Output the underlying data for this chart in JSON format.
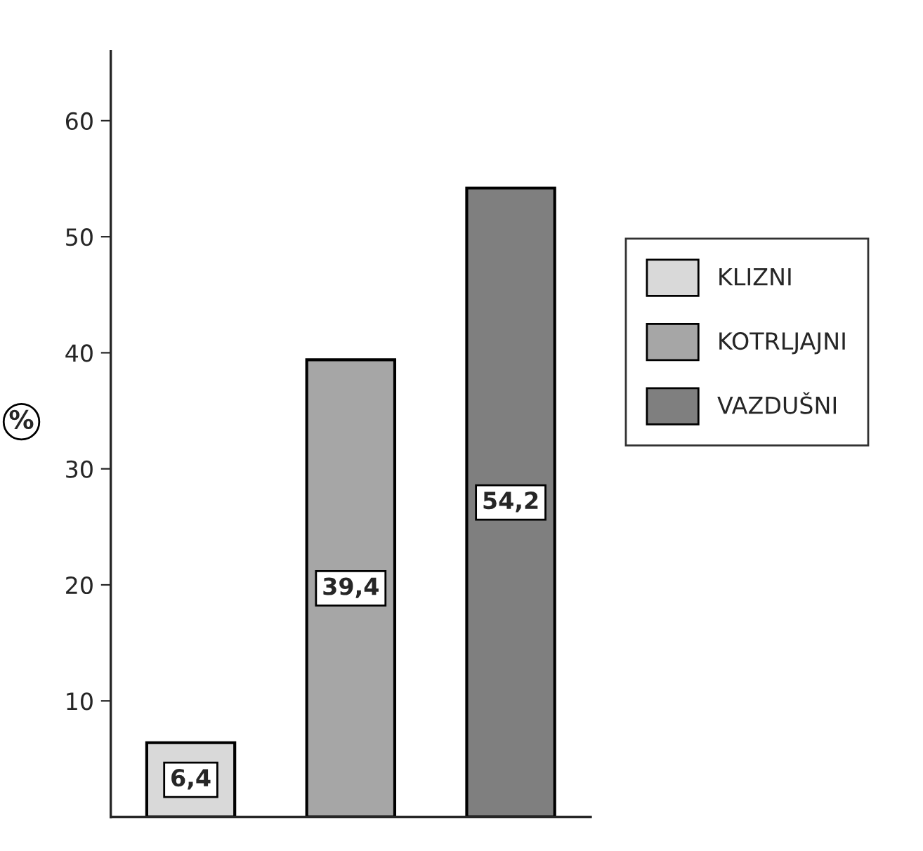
{
  "chart_data": {
    "type": "bar",
    "categories": [
      null,
      null,
      null
    ],
    "ylabel": "%",
    "series": [
      {
        "name": "KLIZNI",
        "color": "#d9d9d9",
        "values": [
          6.4,
          null,
          null
        ],
        "value_labels": [
          "6,4",
          null,
          null
        ]
      },
      {
        "name": "KOTRLJAJNI",
        "color": "#a6a6a6",
        "values": [
          null,
          39.4,
          null
        ],
        "value_labels": [
          null,
          "39,4",
          null
        ]
      },
      {
        "name": "VAZDUŠNI",
        "color": "#7f7f7f",
        "values": [
          null,
          null,
          54.2
        ],
        "value_labels": [
          null,
          null,
          "54,2"
        ]
      }
    ],
    "ylim": [
      0,
      66
    ],
    "yticks": [
      10,
      20,
      30,
      40,
      50,
      60
    ],
    "grid": false,
    "legend": "right"
  }
}
